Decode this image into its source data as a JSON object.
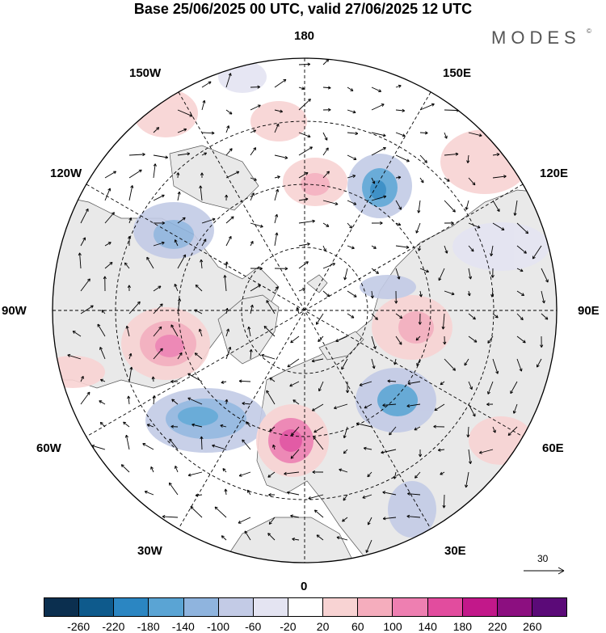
{
  "title": "Base 25/06/2025 00 UTC, valid 27/06/2025 12 UTC",
  "brand": "MODES",
  "brand_mark": "©",
  "longitude_labels": {
    "n180": "180",
    "w150": "150W",
    "e150": "150E",
    "w120": "120W",
    "e120": "120E",
    "w90": "90W",
    "e90": "90E",
    "w60": "60W",
    "e60": "60E",
    "w30": "30W",
    "e30": "30E",
    "s0": "0"
  },
  "reference_vector": {
    "value": "30",
    "icon": "arrow-right-icon"
  },
  "legend": {
    "colors": [
      "#0b2f4f",
      "#0e5a8c",
      "#2b86c2",
      "#5aa4d4",
      "#8fb4de",
      "#c3cbe6",
      "#e4e4f2",
      "#ffffff",
      "#f8d3d3",
      "#f5adbd",
      "#ee7fb1",
      "#e24c9e",
      "#c2188a",
      "#8c0f80",
      "#5b0a78"
    ],
    "ticks": [
      "-260",
      "-220",
      "-180",
      "-140",
      "-100",
      "-60",
      "-20",
      "20",
      "60",
      "100",
      "140",
      "180",
      "220",
      "260"
    ]
  },
  "colors": {
    "land": "#e9e9e9",
    "ocean": "#ffffff",
    "graticule": "#000000"
  }
}
